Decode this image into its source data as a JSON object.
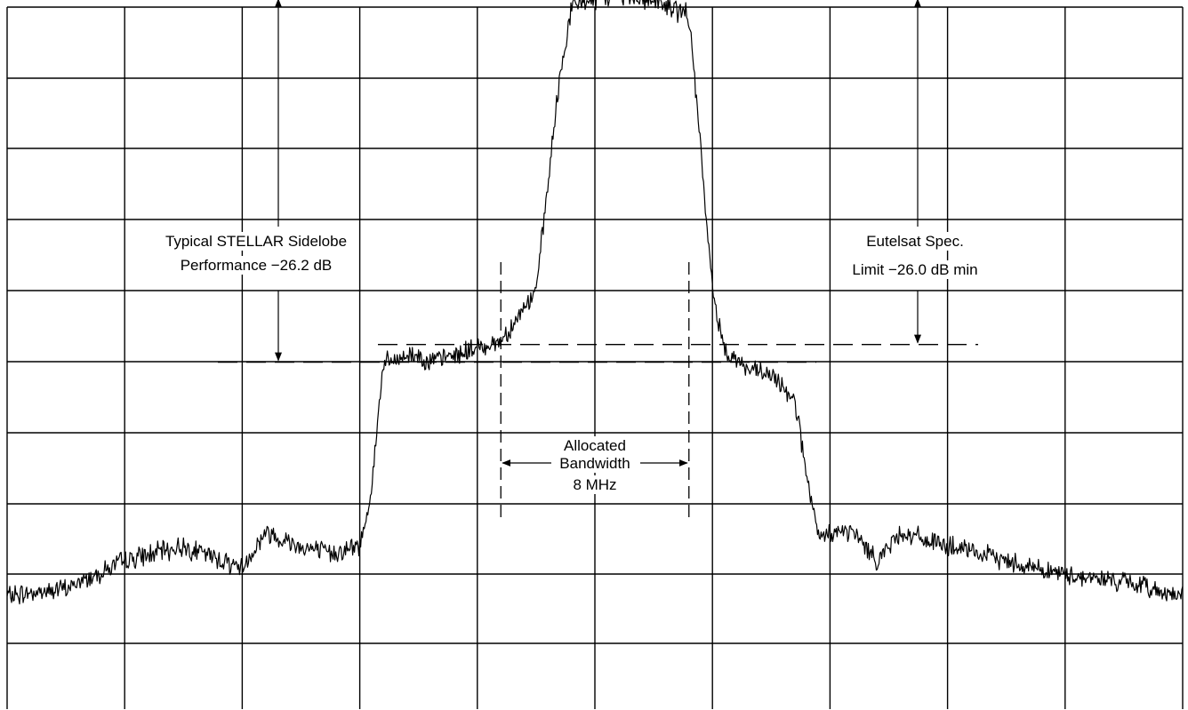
{
  "chart_data": {
    "type": "line",
    "title": "",
    "xlabel": "",
    "ylabel": "",
    "grid": true,
    "grid_divisions": {
      "x": 10,
      "y": 10
    },
    "series": [
      {
        "x": [
          0,
          0.5,
          1.0,
          1.5,
          2.0,
          2.2,
          2.5,
          2.75,
          3.0,
          3.1,
          3.2,
          3.3,
          3.4,
          3.5,
          3.6,
          3.8,
          4.0,
          4.2,
          4.5,
          4.7,
          4.8,
          4.9,
          5.0,
          5.2,
          5.5,
          5.8,
          5.9,
          6.0,
          6.1,
          6.3,
          6.5,
          6.7,
          6.8,
          6.9,
          7.0,
          7.2,
          7.4,
          7.6,
          8.0,
          8.5,
          9.0,
          9.5,
          10.0
        ],
        "y": [
          -1.3,
          -1.2,
          -0.8,
          -0.6,
          -0.9,
          -0.4,
          -0.6,
          -0.7,
          -0.6,
          0.2,
          2.0,
          2.0,
          2.1,
          2.1,
          2.0,
          2.1,
          2.2,
          2.3,
          3.0,
          6.0,
          7.0,
          7.1,
          7.1,
          7.2,
          7.1,
          6.9,
          5.0,
          3.0,
          2.2,
          1.9,
          1.8,
          1.5,
          0.4,
          -0.5,
          -0.4,
          -0.4,
          -0.8,
          -0.4,
          -0.6,
          -0.8,
          -1.0,
          -1.1,
          -1.3
        ]
      }
    ],
    "annotations": [
      {
        "text": "Typical STELLAR Sidelobe",
        "group": "stellar"
      },
      {
        "text": "Performance −26.2 dB",
        "group": "stellar"
      },
      {
        "text": "Eutelsat Spec.",
        "group": "eutelsat"
      },
      {
        "text": "Limit −26.0 dB min",
        "group": "eutelsat"
      },
      {
        "text": "Allocated",
        "group": "bandwidth"
      },
      {
        "text": "Bandwidth",
        "group": "bandwidth"
      },
      {
        "text": "8 MHz",
        "group": "bandwidth"
      }
    ],
    "reference_lines": [
      {
        "kind": "horizontal",
        "y": 7.15,
        "style": "dashed"
      },
      {
        "kind": "horizontal",
        "y": 2.25,
        "style": "dashed"
      },
      {
        "kind": "horizontal",
        "y": 2.0,
        "style": "dashed"
      },
      {
        "kind": "vertical",
        "x": 4.2,
        "style": "dashed"
      },
      {
        "kind": "vertical",
        "x": 5.8,
        "style": "dashed"
      }
    ]
  }
}
